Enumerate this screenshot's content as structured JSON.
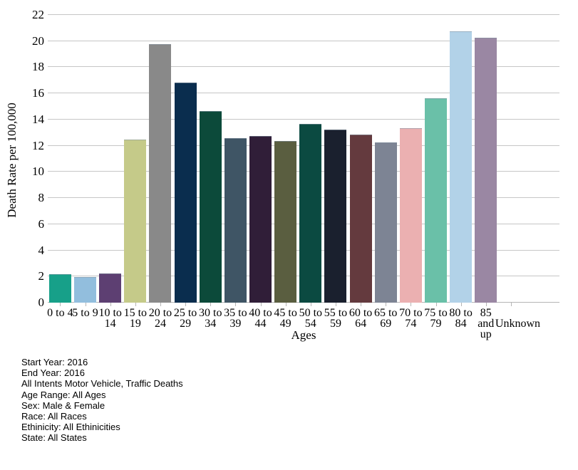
{
  "chart_data": {
    "type": "bar",
    "title": "",
    "xlabel": "Ages",
    "ylabel": "Death Rate per 100,000",
    "ylim": [
      0,
      22
    ],
    "yticks": [
      0,
      2,
      4,
      6,
      8,
      10,
      12,
      14,
      16,
      18,
      20,
      22
    ],
    "grid": "horizontal",
    "legend": "none",
    "categories": [
      "0 to 4",
      "5 to 9",
      "10 to 14",
      "15 to 19",
      "20 to 24",
      "25 to 29",
      "30 to 34",
      "35 to 39",
      "40 to 44",
      "45 to 49",
      "50 to 54",
      "55 to 59",
      "60 to 64",
      "65 to 69",
      "70 to 74",
      "75 to 79",
      "80 to 84",
      "85 and up",
      "Unknown"
    ],
    "values": [
      2.1,
      1.9,
      2.2,
      12.4,
      19.7,
      16.8,
      14.6,
      12.5,
      12.7,
      12.3,
      13.6,
      13.2,
      12.8,
      12.2,
      13.3,
      15.6,
      20.7,
      20.2,
      0
    ],
    "bar_colors": [
      "#17a089",
      "#92bedd",
      "#5d3f72",
      "#c5ca89",
      "#898989",
      "#0a2d4e",
      "#0c4a3a",
      "#3f5565",
      "#301e38",
      "#5a5e40",
      "#0b4a41",
      "#1a202e",
      "#643a3e",
      "#7d8494",
      "#ebb0b1",
      "#6ac0a8",
      "#b2d2e8",
      "#9a87a3",
      null
    ],
    "tick_label_lines": [
      [
        "0 to 4"
      ],
      [
        "5 to 9"
      ],
      [
        "10 to",
        "14"
      ],
      [
        "15 to",
        "19"
      ],
      [
        "20 to",
        "24"
      ],
      [
        "25 to",
        "29"
      ],
      [
        "30 to",
        "34"
      ],
      [
        "35 to",
        "39"
      ],
      [
        "40 to",
        "44"
      ],
      [
        "45 to",
        "49"
      ],
      [
        "50 to",
        "54"
      ],
      [
        "55 to",
        "59"
      ],
      [
        "60 to",
        "64"
      ],
      [
        "65 to",
        "69"
      ],
      [
        "70 to",
        "74"
      ],
      [
        "75 to",
        "79"
      ],
      [
        "80 to",
        "84"
      ],
      [
        "85",
        "and",
        "up"
      ],
      [
        "Unknown"
      ]
    ]
  },
  "footer": {
    "lines": [
      "Start Year: 2016",
      "End Year: 2016",
      "All Intents Motor Vehicle, Traffic Deaths",
      "Age Range: All Ages",
      "Sex: Male & Female",
      "Race: All Races",
      "Ethinicity: All Ethinicities",
      "State: All States"
    ]
  },
  "colors": {
    "background": "#ffffff",
    "gridline": "#c6c6c6",
    "axis_text": "#000000"
  }
}
